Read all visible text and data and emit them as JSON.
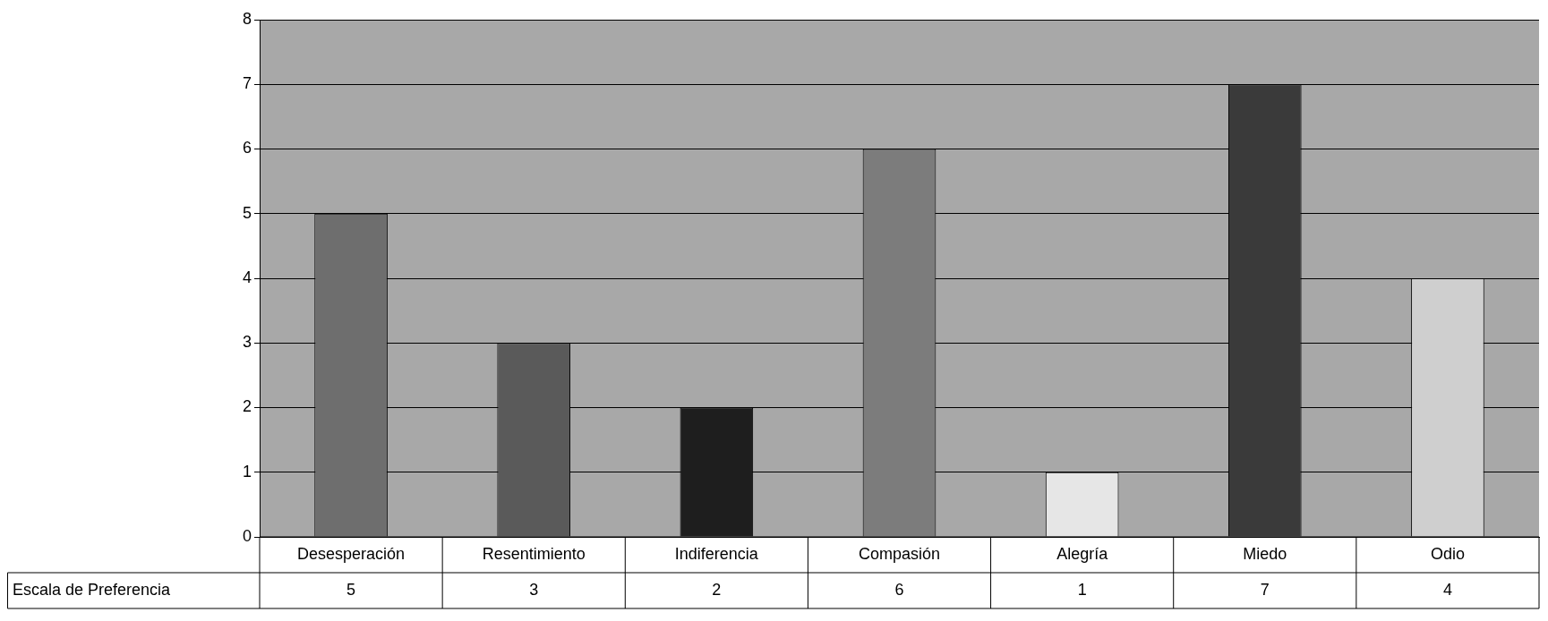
{
  "chart_data": {
    "type": "bar",
    "categories": [
      "Desesperación",
      "Resentimiento",
      "Indiferencia",
      "Compasión",
      "Alegría",
      "Miedo",
      "Odio"
    ],
    "series": [
      {
        "name": "Escala de Preferencia",
        "colors": [
          "#6e6e6e",
          "#5a5a5a",
          "#1e1e1e",
          "#7c7c7c",
          "#e6e6e6",
          "#3a3a3a",
          "#cfcfcf"
        ],
        "values": [
          5,
          3,
          2,
          6,
          1,
          7,
          4
        ]
      }
    ],
    "ylim": [
      0,
      8
    ],
    "yticks": [
      0,
      1,
      2,
      3,
      4,
      5,
      6,
      7,
      8
    ],
    "grid": "y",
    "data_labels": true
  }
}
